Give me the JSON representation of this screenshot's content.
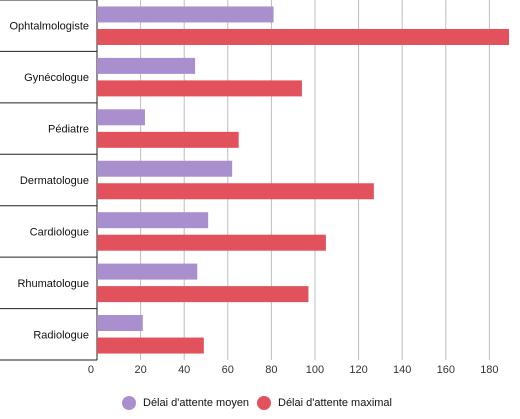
{
  "chart_data": {
    "type": "bar",
    "orientation": "horizontal",
    "categories": [
      "Ophtalmologiste",
      "Gynécologue",
      "Pédiatre",
      "Dermatologue",
      "Cardiologue",
      "Rhumatologue",
      "Radiologue"
    ],
    "series": [
      {
        "name": "Délai d'attente moyen",
        "color": "#a98fce",
        "values": [
          81,
          45,
          22,
          62,
          51,
          46,
          21
        ]
      },
      {
        "name": "Délai d'attente maximal",
        "color": "#e2525c",
        "values": [
          189,
          94,
          65,
          127,
          105,
          97,
          49
        ]
      }
    ],
    "xticks": [
      "0",
      "20",
      "40",
      "60",
      "80",
      "100",
      "120",
      "140",
      "160",
      "180"
    ],
    "xlim": [
      0,
      189
    ],
    "grid": true,
    "legend_position": "bottom",
    "title": "",
    "xlabel": "",
    "ylabel": ""
  }
}
